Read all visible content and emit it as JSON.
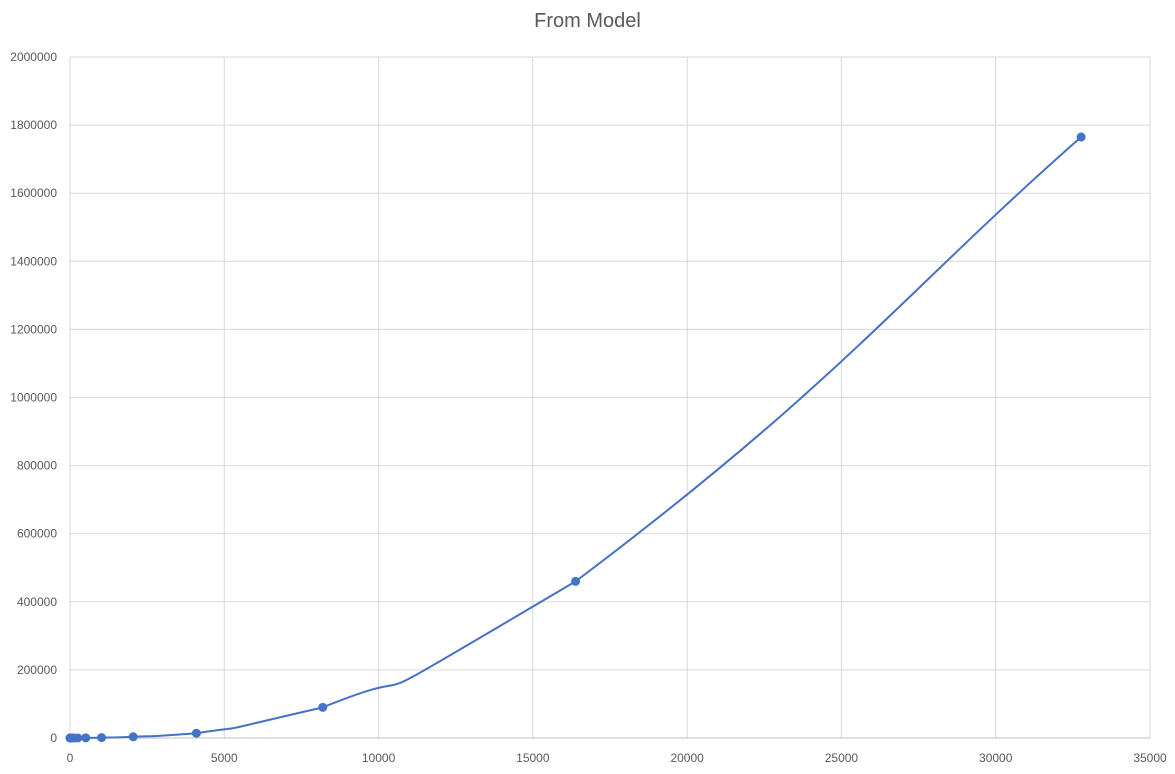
{
  "chart_data": {
    "type": "scatter",
    "title": "From Model",
    "xlabel": "",
    "ylabel": "",
    "xlim": [
      0,
      35000
    ],
    "ylim": [
      0,
      2000000
    ],
    "x_ticks": [
      0,
      5000,
      10000,
      15000,
      20000,
      25000,
      30000,
      35000
    ],
    "y_ticks": [
      0,
      200000,
      400000,
      600000,
      800000,
      1000000,
      1200000,
      1400000,
      1600000,
      1800000,
      2000000
    ],
    "grid": true,
    "smooth_line": true,
    "legend": "none",
    "series": [
      {
        "color": "#4472C4",
        "x": [
          1,
          2,
          4,
          8,
          16,
          32,
          64,
          128,
          256,
          512,
          1024,
          2048,
          4096,
          8192,
          16384,
          32768
        ],
        "y": [
          0,
          0,
          0,
          0,
          0,
          0,
          0,
          0,
          100,
          400,
          1200,
          3500,
          14000,
          90000,
          460000,
          1765000
        ]
      }
    ]
  }
}
